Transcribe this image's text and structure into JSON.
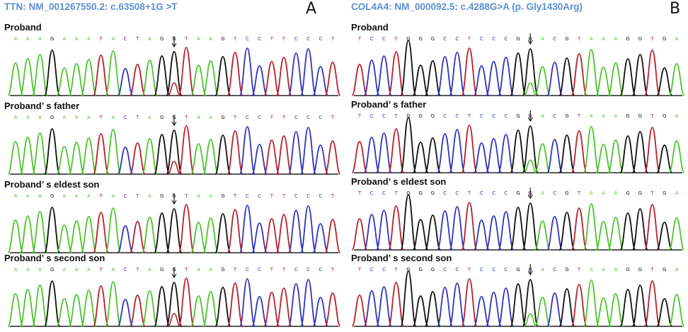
{
  "colors": {
    "A": "#4fc32e",
    "C": "#2f35b8",
    "G": "#111111",
    "T": "#b8202c",
    "title": "#5b8fd0"
  },
  "panels": [
    {
      "id": "a",
      "letter": "A",
      "title": "TTN: NM_001267550.2: c.63508+1G >T",
      "sequence": "AAAGAAATACTAGGTAAGTCCTTCCCT",
      "arrow_index": 13,
      "tracks": [
        {
          "label": "Proband",
          "secondary": "T"
        },
        {
          "label": "Proband’ s father",
          "secondary": "T"
        },
        {
          "label": "Proband’ s eldest son",
          "secondary": ""
        },
        {
          "label": "Proband’ s second son",
          "secondary": "T"
        }
      ]
    },
    {
      "id": "b",
      "letter": "B",
      "title": "COL4A4: NM_000092.5: c.4288G>A (p. Gly1430Arg)",
      "sequence": "TCCTGGGCCTCCCGGACGTAAAGGTGA",
      "arrow_index": 14,
      "tracks": [
        {
          "label": "Proband",
          "secondary": "A"
        },
        {
          "label": "Proband’ s father",
          "secondary": "A"
        },
        {
          "label": "Proband’ s eldest son",
          "secondary": ""
        },
        {
          "label": "Proband’ s second son",
          "secondary": "A"
        }
      ]
    }
  ]
}
